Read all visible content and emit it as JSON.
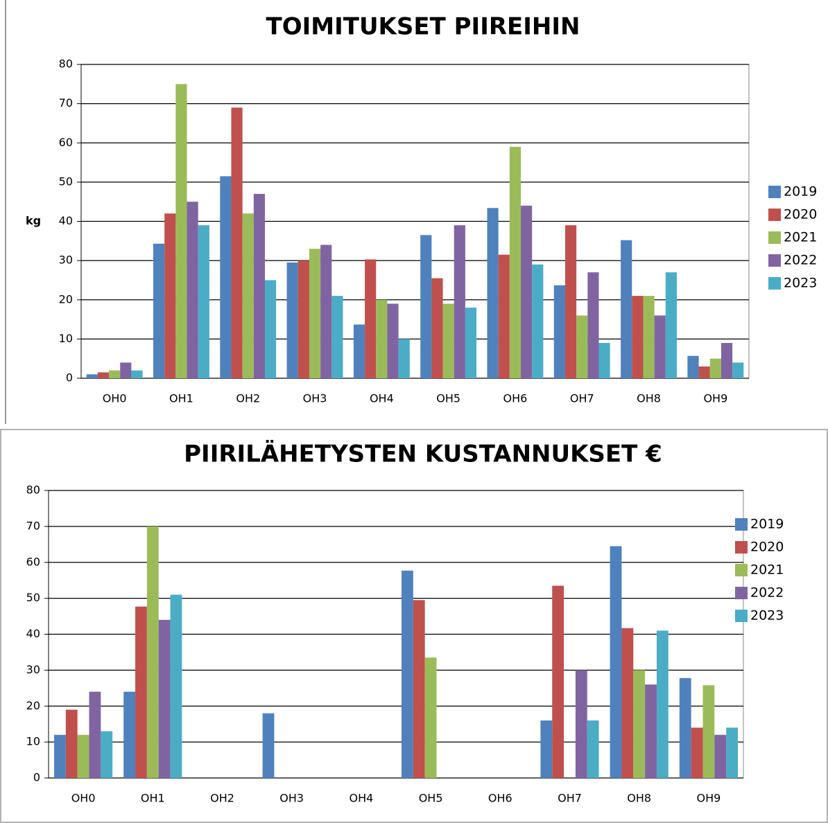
{
  "chart_data": [
    {
      "type": "bar",
      "title": "TOIMITUKSET PIIREIHIN",
      "ylabel": "kg",
      "categories": [
        "OH0",
        "OH1",
        "OH2",
        "OH3",
        "OH4",
        "OH5",
        "OH6",
        "OH7",
        "OH8",
        "OH9"
      ],
      "series": [
        {
          "name": "2019",
          "color": "#4f81bd",
          "values": [
            1,
            34.3,
            51.5,
            29.5,
            13.7,
            36.5,
            43.4,
            23.7,
            35.2,
            5.7
          ]
        },
        {
          "name": "2020",
          "color": "#c0504d",
          "values": [
            1.5,
            42,
            69,
            30,
            30.3,
            25.5,
            31.5,
            39,
            21,
            3
          ]
        },
        {
          "name": "2021",
          "color": "#9bbb59",
          "values": [
            2,
            75,
            42,
            33,
            20,
            19,
            59,
            16,
            21,
            5
          ]
        },
        {
          "name": "2022",
          "color": "#8064a2",
          "values": [
            4,
            45,
            47,
            34,
            19,
            39,
            44,
            27,
            16,
            9
          ]
        },
        {
          "name": "2023",
          "color": "#4bacc6",
          "values": [
            2,
            39,
            25,
            21,
            10,
            18,
            29,
            9,
            27,
            4
          ]
        }
      ],
      "ylim": [
        0,
        80
      ],
      "yticks": [
        0,
        10,
        20,
        30,
        40,
        50,
        60,
        70,
        80
      ],
      "grid": true,
      "legend": "right"
    },
    {
      "type": "bar",
      "title": "PIIRILÄHETYSTEN KUSTANNUKSET €",
      "categories": [
        "OH0",
        "OH1",
        "OH2",
        "OH3",
        "OH4",
        "OH5",
        "OH6",
        "OH7",
        "OH8",
        "OH9"
      ],
      "series": [
        {
          "name": "2019",
          "color": "#4f81bd",
          "values": [
            12,
            24,
            null,
            18,
            null,
            57.7,
            null,
            16,
            64.5,
            27.8
          ]
        },
        {
          "name": "2020",
          "color": "#c0504d",
          "values": [
            19,
            47.7,
            null,
            null,
            null,
            49.5,
            null,
            53.5,
            41.7,
            14
          ]
        },
        {
          "name": "2021",
          "color": "#9bbb59",
          "values": [
            12,
            70,
            null,
            null,
            null,
            33.5,
            null,
            null,
            30,
            25.8
          ]
        },
        {
          "name": "2022",
          "color": "#8064a2",
          "values": [
            24,
            44,
            null,
            null,
            null,
            null,
            null,
            30,
            26,
            12
          ]
        },
        {
          "name": "2023",
          "color": "#4bacc6",
          "values": [
            13,
            51,
            null,
            null,
            null,
            null,
            null,
            16,
            41,
            14
          ]
        }
      ],
      "ylim": [
        0,
        80
      ],
      "yticks": [
        0,
        10,
        20,
        30,
        40,
        50,
        60,
        70,
        80
      ],
      "grid": true,
      "legend": "right"
    }
  ]
}
